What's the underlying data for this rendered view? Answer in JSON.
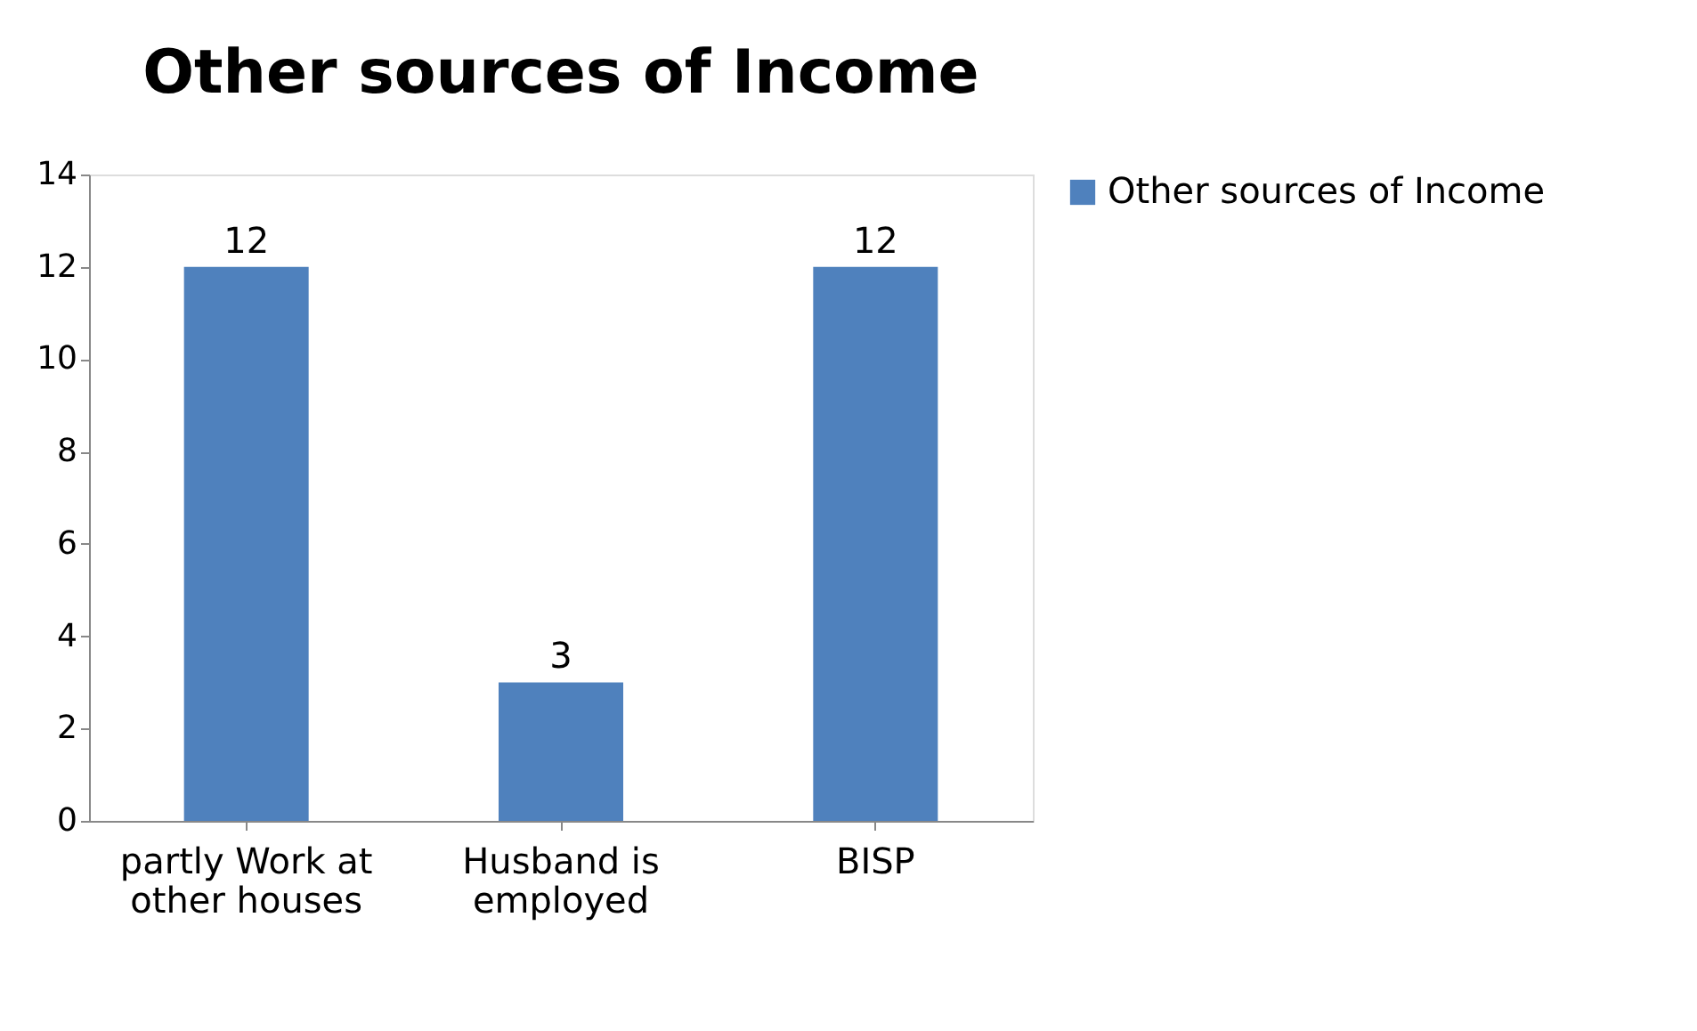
{
  "chart_data": {
    "type": "bar",
    "title": "Other sources  of Income",
    "categories": [
      "partly Work at other houses",
      "Husband is employed",
      "BISP"
    ],
    "series": [
      {
        "name": "Other sources  of Income",
        "color": "#4f81bd",
        "values": [
          12,
          3,
          12
        ]
      }
    ],
    "ylim": [
      0,
      14
    ],
    "yticks": [
      0,
      2,
      4,
      6,
      8,
      10,
      12,
      14
    ],
    "grid": false,
    "legend": "right",
    "data_labels": true
  }
}
